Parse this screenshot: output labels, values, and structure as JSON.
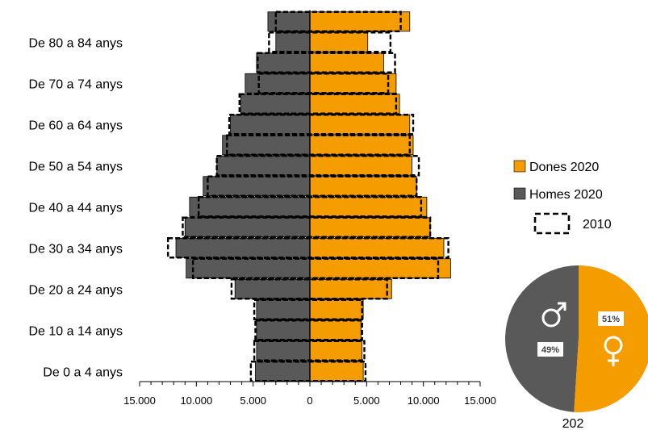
{
  "chart_data": [
    {
      "type": "bar",
      "subtype": "population-pyramid",
      "categories": [
        "0-4",
        "5-9",
        "10-14",
        "15-19",
        "20-24",
        "25-29",
        "30-34",
        "35-39",
        "40-44",
        "45-49",
        "50-54",
        "55-59",
        "60-64",
        "65-69",
        "70-74",
        "75-79",
        "80-84",
        "85+"
      ],
      "category_labels_shown": [
        "De 0 a 4 anys",
        "De 10 a 14 anys",
        "De 20 a 24 anys",
        "De 30 a 34 anys",
        "De 40 a 44 anys",
        "De 50 a 54 anys",
        "De 60 a 64 anys",
        "De 70 a 74 anys",
        "De 80 a 84 anys"
      ],
      "series": [
        {
          "name": "Homes 2020",
          "side": "left",
          "color": "#595959",
          "values": [
            4800,
            4700,
            4700,
            4700,
            6600,
            10900,
            11800,
            11000,
            10600,
            9400,
            8200,
            7700,
            7000,
            6100,
            5700,
            4700,
            3000,
            3700
          ]
        },
        {
          "name": "Dones 2020",
          "side": "right",
          "color": "#f59c00",
          "values": [
            4700,
            4600,
            4500,
            4700,
            7200,
            12400,
            11800,
            10600,
            10300,
            9400,
            9000,
            9100,
            8800,
            7900,
            7600,
            6500,
            5100,
            8800
          ]
        },
        {
          "name": "2010",
          "style": "dashed-outline",
          "color": "#000000",
          "values_left": [
            5200,
            4900,
            4800,
            4900,
            6900,
            10300,
            12500,
            11200,
            9800,
            9000,
            8200,
            7300,
            7100,
            6200,
            4500,
            4600,
            3600,
            3000
          ],
          "values_right": [
            4900,
            4800,
            4600,
            4600,
            6800,
            11300,
            12200,
            10600,
            9800,
            9400,
            9600,
            8800,
            9100,
            7600,
            6900,
            7500,
            7100,
            8000
          ]
        }
      ],
      "xticks": [
        "15.000",
        "10.000",
        "5.000",
        "0",
        "5.000",
        "10.000",
        "15.000"
      ],
      "xlim": [
        -15000,
        15000
      ],
      "legend": [
        {
          "label": "Dones 2020",
          "color": "#f59c00",
          "style": "solid"
        },
        {
          "label": "Homes 2020",
          "color": "#595959",
          "style": "solid"
        },
        {
          "label": "2010",
          "color": "#000000",
          "style": "dashed"
        }
      ],
      "legend_position": "right"
    },
    {
      "type": "pie",
      "slices": [
        {
          "name": "Homes",
          "value": 49,
          "label": "49%",
          "color": "#595959",
          "icon": "male-symbol-icon"
        },
        {
          "name": "Dones",
          "value": 51,
          "label": "51%",
          "color": "#f59c00",
          "icon": "female-symbol-icon"
        }
      ],
      "caption": "202"
    }
  ]
}
